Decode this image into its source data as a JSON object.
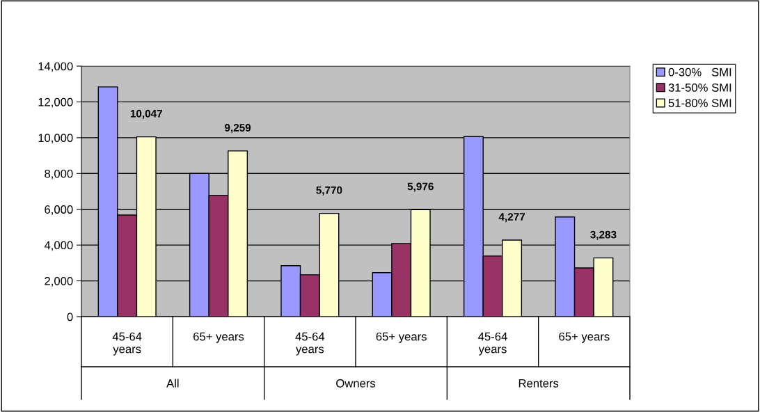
{
  "chart_data": {
    "type": "bar",
    "categories": [
      "45-64\nyears",
      "65+ years",
      "45-64\nyears",
      "65+ years",
      "45-64\nyears",
      "65+ years"
    ],
    "series": [
      {
        "name": "0-30%   SMI",
        "color": "#9999ff",
        "values": [
          12840,
          8000,
          2850,
          2460,
          10060,
          5570
        ]
      },
      {
        "name": "31-50% SMI",
        "color": "#993366",
        "values": [
          5680,
          6780,
          2340,
          4090,
          3390,
          2720
        ]
      },
      {
        "name": "51-80% SMI",
        "color": "#ffffcc",
        "values": [
          10047,
          9259,
          5770,
          5976,
          4277,
          3283
        ],
        "value_labels": [
          "10,047",
          "9,259",
          "5,770",
          "5,976",
          "4,277",
          "3,283"
        ]
      }
    ],
    "annotations": [
      "All",
      "Owners",
      "Renters"
    ],
    "ylim": [
      0,
      14000
    ],
    "yticks": [
      {
        "value": 0,
        "label": "0"
      },
      {
        "value": 2000,
        "label": "2,000"
      },
      {
        "value": 4000,
        "label": "4,000"
      },
      {
        "value": 6000,
        "label": "6,000"
      },
      {
        "value": 8000,
        "label": "8,000"
      },
      {
        "value": 10000,
        "label": "10,000"
      },
      {
        "value": 12000,
        "label": "12,000"
      },
      {
        "value": 14000,
        "label": "14,000"
      }
    ],
    "grid": "y",
    "legend": "top right"
  }
}
